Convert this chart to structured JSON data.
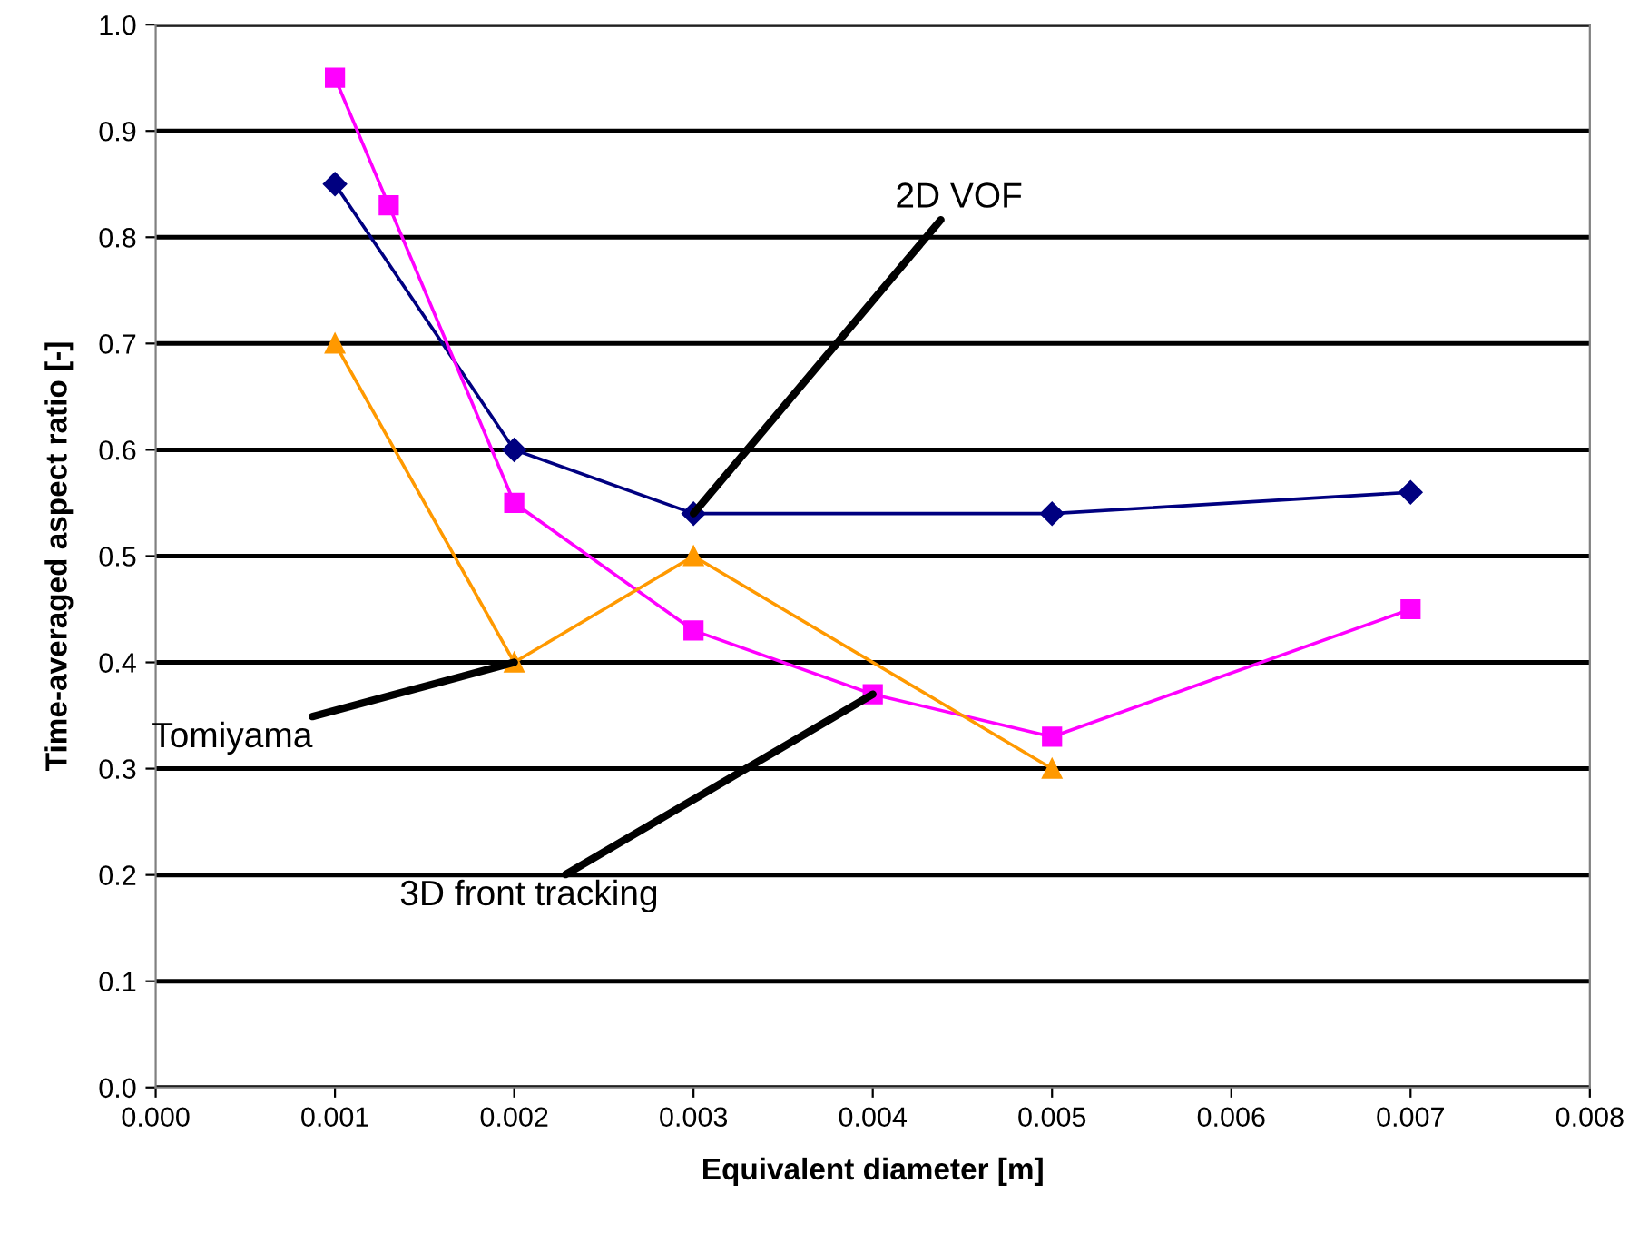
{
  "chart_data": {
    "type": "line",
    "xlabel": "Equivalent diameter [m]",
    "ylabel": "Time-averaged aspect ratio [-]",
    "series": [
      {
        "color": "#000080",
        "marker": "diamond",
        "x": [
          0.001,
          0.002,
          0.003,
          0.005,
          0.007
        ],
        "values": [
          0.85,
          0.6,
          0.54,
          0.54,
          0.56
        ]
      },
      {
        "color": "#ff00ff",
        "marker": "square",
        "x": [
          0.001,
          0.0013,
          0.002,
          0.003,
          0.004,
          0.005,
          0.007
        ],
        "values": [
          0.95,
          0.83,
          0.55,
          0.43,
          0.37,
          0.33,
          0.45
        ]
      },
      {
        "color": "#ff9900",
        "marker": "triangle",
        "x": [
          0.001,
          0.002,
          0.003,
          0.005
        ],
        "values": [
          0.7,
          0.4,
          0.5,
          0.3
        ]
      }
    ],
    "annotations": [
      {
        "text": "2D VOF",
        "x": 0.003,
        "y": 0.54
      },
      {
        "text": "Tomiyama",
        "x": 0.002,
        "y": 0.4
      },
      {
        "text": "3D front tracking",
        "x": 0.004,
        "y": 0.37
      }
    ],
    "xlim": [
      0.0,
      0.008
    ],
    "ylim": [
      0.0,
      1.0
    ],
    "xticks": [
      {
        "value": 0.0,
        "label": "0.000"
      },
      {
        "value": 0.001,
        "label": "0.001"
      },
      {
        "value": 0.002,
        "label": "0.002"
      },
      {
        "value": 0.003,
        "label": "0.003"
      },
      {
        "value": 0.004,
        "label": "0.004"
      },
      {
        "value": 0.005,
        "label": "0.005"
      },
      {
        "value": 0.006,
        "label": "0.006"
      },
      {
        "value": 0.007,
        "label": "0.007"
      },
      {
        "value": 0.008,
        "label": "0.008"
      }
    ],
    "yticks": [
      {
        "value": 0.0,
        "label": "0.0"
      },
      {
        "value": 0.1,
        "label": "0.1"
      },
      {
        "value": 0.2,
        "label": "0.2"
      },
      {
        "value": 0.3,
        "label": "0.3"
      },
      {
        "value": 0.4,
        "label": "0.4"
      },
      {
        "value": 0.5,
        "label": "0.5"
      },
      {
        "value": 0.6,
        "label": "0.6"
      },
      {
        "value": 0.7,
        "label": "0.7"
      },
      {
        "value": 0.8,
        "label": "0.8"
      },
      {
        "value": 0.9,
        "label": "0.9"
      },
      {
        "value": 1.0,
        "label": "1.0"
      }
    ],
    "grid": "y",
    "legend": false
  }
}
